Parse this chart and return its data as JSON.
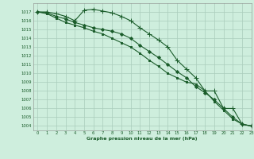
{
  "title": "Graphe pression niveau de la mer (hPa)",
  "background_color": "#ceeedd",
  "grid_color": "#aaccbb",
  "line_color": "#1a5c2a",
  "xlim": [
    -0.5,
    23
  ],
  "ylim": [
    1003.5,
    1018
  ],
  "yticks": [
    1004,
    1005,
    1006,
    1007,
    1008,
    1009,
    1010,
    1011,
    1012,
    1013,
    1014,
    1015,
    1016,
    1017
  ],
  "xticks": [
    0,
    1,
    2,
    3,
    4,
    5,
    6,
    7,
    8,
    9,
    10,
    11,
    12,
    13,
    14,
    15,
    16,
    17,
    18,
    19,
    20,
    21,
    22,
    23
  ],
  "series": [
    {
      "x": [
        0,
        1,
        2,
        3,
        4,
        5,
        6,
        7,
        8,
        9,
        10,
        11,
        12,
        13,
        14,
        15,
        16,
        17,
        18,
        19,
        20,
        21,
        22,
        23
      ],
      "y": [
        1017,
        1017,
        1016.8,
        1016.5,
        1016,
        1017.2,
        1017.3,
        1017.1,
        1016.9,
        1016.5,
        1016,
        1015.2,
        1014.5,
        1013.8,
        1013,
        1011.5,
        1010.5,
        1009.5,
        1008,
        1008,
        1006,
        1006,
        1004.2,
        1004
      ],
      "marker": "+"
    },
    {
      "x": [
        0,
        1,
        2,
        3,
        4,
        5,
        6,
        7,
        8,
        9,
        10,
        11,
        12,
        13,
        14,
        15,
        16,
        17,
        18,
        19,
        20,
        21,
        22,
        23
      ],
      "y": [
        1017,
        1016.9,
        1016.5,
        1016.2,
        1015.8,
        1015.5,
        1015.2,
        1015,
        1014.8,
        1014.5,
        1014,
        1013.2,
        1012.5,
        1011.8,
        1011,
        1010.2,
        1009.5,
        1008.5,
        1007.8,
        1007,
        1006,
        1005,
        1004.2,
        1004
      ],
      "marker": "D"
    },
    {
      "x": [
        0,
        1,
        2,
        3,
        4,
        5,
        6,
        7,
        8,
        9,
        10,
        11,
        12,
        13,
        14,
        15,
        16,
        17,
        18,
        19,
        20,
        21,
        22,
        23
      ],
      "y": [
        1017,
        1016.8,
        1016.3,
        1015.8,
        1015.5,
        1015.2,
        1014.8,
        1014.5,
        1014,
        1013.5,
        1013,
        1012.3,
        1011.5,
        1010.8,
        1010,
        1009.5,
        1009,
        1008.8,
        1008,
        1006.8,
        1005.8,
        1004.8,
        1004.2,
        1004
      ],
      "marker": "s"
    }
  ]
}
